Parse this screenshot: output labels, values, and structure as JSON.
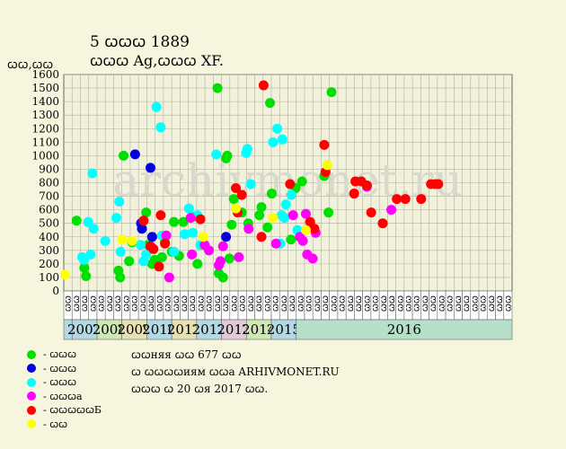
{
  "header": {
    "title": "5 ꞷꞷꞷ 1889",
    "subtitle": "ꞷꞷꞷ Ag,ꞷꞷꞷ XF.",
    "unit": "ꞷꞷ,ꞷꞷ"
  },
  "watermark": "archivmonet.ru",
  "legend": [
    {
      "label": "- ꞷꞷꞷ",
      "color": "#00e000"
    },
    {
      "label": "- ꞷꞷꞷ",
      "color": "#0000e0"
    },
    {
      "label": "- ꞷꞷꞷ",
      "color": "#00ffff"
    },
    {
      "label": "- ꞷꞷꞷa",
      "color": "#ff00ff"
    },
    {
      "label": "- ꞷꞷꞷꞷꞷБ",
      "color": "#ff0000"
    },
    {
      "label": "- ꞷꞷ",
      "color": "#ffff00"
    }
  ],
  "info": {
    "line1": "ꞷꞷняя ꞷꞷ 677 ꞷꞷ",
    "line2": "ꞷ ꞷꞷꞷꞷиям ꞷꞷa ARHIVMONET.RU",
    "line3": "ꞷꞷꞷ ꞷ 20 ꞷя 2017 ꞷꞷ."
  },
  "chart_data": {
    "type": "scatter",
    "ylim": [
      0,
      1600
    ],
    "yticks": [
      0,
      100,
      200,
      300,
      400,
      500,
      600,
      700,
      800,
      900,
      1000,
      1100,
      1200,
      1300,
      1400,
      1500,
      1600
    ],
    "half_year_labels": [
      "ꞷꞷ",
      "ꞷꞷ",
      "ꞷꞷ",
      "ꞷꞷ",
      "ꞷꞷ",
      "ꞷꞷ",
      "ꞷꞷ",
      "ꞷꞷ",
      "ꞷꞷ",
      "ꞷꞷ",
      "ꞷꞷ",
      "ꞷꞷ",
      "ꞷꞷ",
      "ꞷꞷ",
      "ꞷꞷ",
      "ꞷꞷ",
      "ꞷꞷ",
      "ꞷꞷ",
      "ꞷꞷ",
      "ꞷꞷ",
      "ꞷꞷ",
      "ꞷꞷ",
      "ꞷꞷ",
      "ꞷꞷ",
      "ꞷꞷ",
      "ꞷꞷ",
      "ꞷꞷ",
      "ꞷꞷ",
      "ꞷꞷ",
      "ꞷꞷ",
      "ꞷꞷ",
      "ꞷꞷ",
      "ꞷꞷ",
      "ꞷꞷ",
      "ꞷꞷ",
      "ꞷꞷ",
      "ꞷꞷ",
      "ꞷꞷ",
      "ꞷꞷ",
      "ꞷꞷ",
      "ꞷꞷ",
      "ꞷꞷ",
      "ꞷꞷ",
      "ꞷꞷ",
      "ꞷꞷ",
      "ꞷꞷ",
      "ꞷꞷ",
      "ꞷꞷ",
      "ꞷꞷ",
      "ꞷꞷ",
      "ꞷꞷ",
      "ꞷꞷ",
      "ꞷꞷ",
      "ꞷꞷ"
    ],
    "years": [
      {
        "label": "2007",
        "color": "#b5d9e4"
      },
      {
        "label": "2008",
        "color": "#cfe6b5"
      },
      {
        "label": "2009",
        "color": "#e6e0b5"
      },
      {
        "label": "2010",
        "color": "#b5d9e4"
      },
      {
        "label": "2011",
        "color": "#e6e0b5"
      },
      {
        "label": "2012",
        "color": "#b5d9e4"
      },
      {
        "label": "2013",
        "color": "#e2c9d6"
      },
      {
        "label": "2014",
        "color": "#cfe6b5"
      },
      {
        "label": "2015",
        "color": "#b5d9e4"
      },
      {
        "label": "2016",
        "color": "#b5dfc9"
      }
    ],
    "xlim": [
      2006.25,
      2016.75
    ],
    "series": [
      {
        "color": "#00e000",
        "points": [
          [
            2006.55,
            520
          ],
          [
            2006.73,
            170
          ],
          [
            2006.77,
            110
          ],
          [
            2007.53,
            150
          ],
          [
            2007.57,
            100
          ],
          [
            2007.65,
            1000
          ],
          [
            2007.78,
            220
          ],
          [
            2007.85,
            360
          ],
          [
            2008.18,
            580
          ],
          [
            2008.23,
            340
          ],
          [
            2008.32,
            200
          ],
          [
            2008.38,
            230
          ],
          [
            2008.55,
            250
          ],
          [
            2008.62,
            360
          ],
          [
            2008.78,
            290
          ],
          [
            2008.83,
            510
          ],
          [
            2008.95,
            260
          ],
          [
            2009.05,
            510
          ],
          [
            2009.32,
            550
          ],
          [
            2009.38,
            200
          ],
          [
            2009.52,
            340
          ],
          [
            2009.85,
            1500
          ],
          [
            2009.88,
            130
          ],
          [
            2009.98,
            100
          ],
          [
            2010.05,
            980
          ],
          [
            2010.08,
            1000
          ],
          [
            2010.13,
            240
          ],
          [
            2010.18,
            490
          ],
          [
            2010.23,
            680
          ],
          [
            2010.42,
            580
          ],
          [
            2010.57,
            500
          ],
          [
            2010.83,
            560
          ],
          [
            2010.88,
            620
          ],
          [
            2011.02,
            470
          ],
          [
            2011.08,
            1390
          ],
          [
            2011.12,
            720
          ],
          [
            2011.57,
            380
          ],
          [
            2011.68,
            760
          ],
          [
            2011.83,
            810
          ],
          [
            2012.35,
            850
          ],
          [
            2012.45,
            580
          ],
          [
            2012.52,
            1470
          ]
        ]
      },
      {
        "color": "#0000e0",
        "points": [
          [
            2007.92,
            1010
          ],
          [
            2008.06,
            500
          ],
          [
            2008.08,
            460
          ],
          [
            2008.28,
            910
          ],
          [
            2008.32,
            400
          ],
          [
            2010.05,
            400
          ]
        ]
      },
      {
        "color": "#00ffff",
        "points": [
          [
            2006.68,
            250
          ],
          [
            2006.72,
            230
          ],
          [
            2006.82,
            510
          ],
          [
            2006.88,
            270
          ],
          [
            2006.92,
            870
          ],
          [
            2006.95,
            460
          ],
          [
            2007.22,
            370
          ],
          [
            2007.48,
            540
          ],
          [
            2007.55,
            660
          ],
          [
            2007.58,
            290
          ],
          [
            2008.05,
            340
          ],
          [
            2008.12,
            220
          ],
          [
            2008.18,
            270
          ],
          [
            2008.42,
            1360
          ],
          [
            2008.52,
            1210
          ],
          [
            2008.55,
            410
          ],
          [
            2008.83,
            290
          ],
          [
            2009.08,
            420
          ],
          [
            2009.18,
            610
          ],
          [
            2009.27,
            430
          ],
          [
            2009.38,
            560
          ],
          [
            2009.45,
            340
          ],
          [
            2009.52,
            350
          ],
          [
            2009.82,
            1010
          ],
          [
            2010.52,
            1020
          ],
          [
            2010.55,
            1050
          ],
          [
            2010.63,
            790
          ],
          [
            2011.15,
            1100
          ],
          [
            2011.25,
            1200
          ],
          [
            2011.32,
            350
          ],
          [
            2011.35,
            560
          ],
          [
            2011.37,
            1120
          ],
          [
            2011.42,
            540
          ],
          [
            2011.45,
            640
          ],
          [
            2011.58,
            710
          ],
          [
            2011.72,
            450
          ]
        ]
      },
      {
        "color": "#ff00ff",
        "points": [
          [
            2008.65,
            410
          ],
          [
            2008.72,
            100
          ],
          [
            2009.22,
            540
          ],
          [
            2009.25,
            270
          ],
          [
            2009.55,
            340
          ],
          [
            2009.65,
            300
          ],
          [
            2009.88,
            190
          ],
          [
            2009.92,
            220
          ],
          [
            2009.98,
            330
          ],
          [
            2010.35,
            250
          ],
          [
            2010.58,
            460
          ],
          [
            2011.22,
            350
          ],
          [
            2011.62,
            560
          ],
          [
            2011.78,
            400
          ],
          [
            2011.85,
            370
          ],
          [
            2011.92,
            570
          ],
          [
            2011.95,
            270
          ],
          [
            2012.08,
            240
          ],
          [
            2012.15,
            430
          ],
          [
            2013.35,
            770
          ],
          [
            2013.92,
            600
          ]
        ]
      },
      {
        "color": "#ff0000",
        "points": [
          [
            2008.12,
            520
          ],
          [
            2008.28,
            330
          ],
          [
            2008.35,
            310
          ],
          [
            2008.48,
            180
          ],
          [
            2008.52,
            560
          ],
          [
            2008.62,
            350
          ],
          [
            2009.45,
            530
          ],
          [
            2010.28,
            760
          ],
          [
            2010.32,
            580
          ],
          [
            2010.42,
            710
          ],
          [
            2010.88,
            400
          ],
          [
            2010.93,
            1520
          ],
          [
            2011.55,
            790
          ],
          [
            2012.02,
            510
          ],
          [
            2012.12,
            460
          ],
          [
            2012.35,
            1080
          ],
          [
            2012.38,
            880
          ],
          [
            2013.05,
            720
          ],
          [
            2013.08,
            810
          ],
          [
            2013.22,
            810
          ],
          [
            2013.35,
            780
          ],
          [
            2013.45,
            580
          ],
          [
            2013.72,
            500
          ],
          [
            2014.05,
            680
          ],
          [
            2014.25,
            680
          ],
          [
            2014.62,
            680
          ],
          [
            2014.85,
            790
          ],
          [
            2014.95,
            790
          ],
          [
            2015.02,
            790
          ]
        ]
      },
      {
        "color": "#ffff00",
        "points": [
          [
            2006.28,
            120
          ],
          [
            2007.62,
            380
          ],
          [
            2007.85,
            370
          ],
          [
            2009.52,
            400
          ],
          [
            2010.28,
            610
          ],
          [
            2011.15,
            540
          ],
          [
            2011.92,
            450
          ],
          [
            2012.42,
            930
          ]
        ]
      }
    ]
  }
}
